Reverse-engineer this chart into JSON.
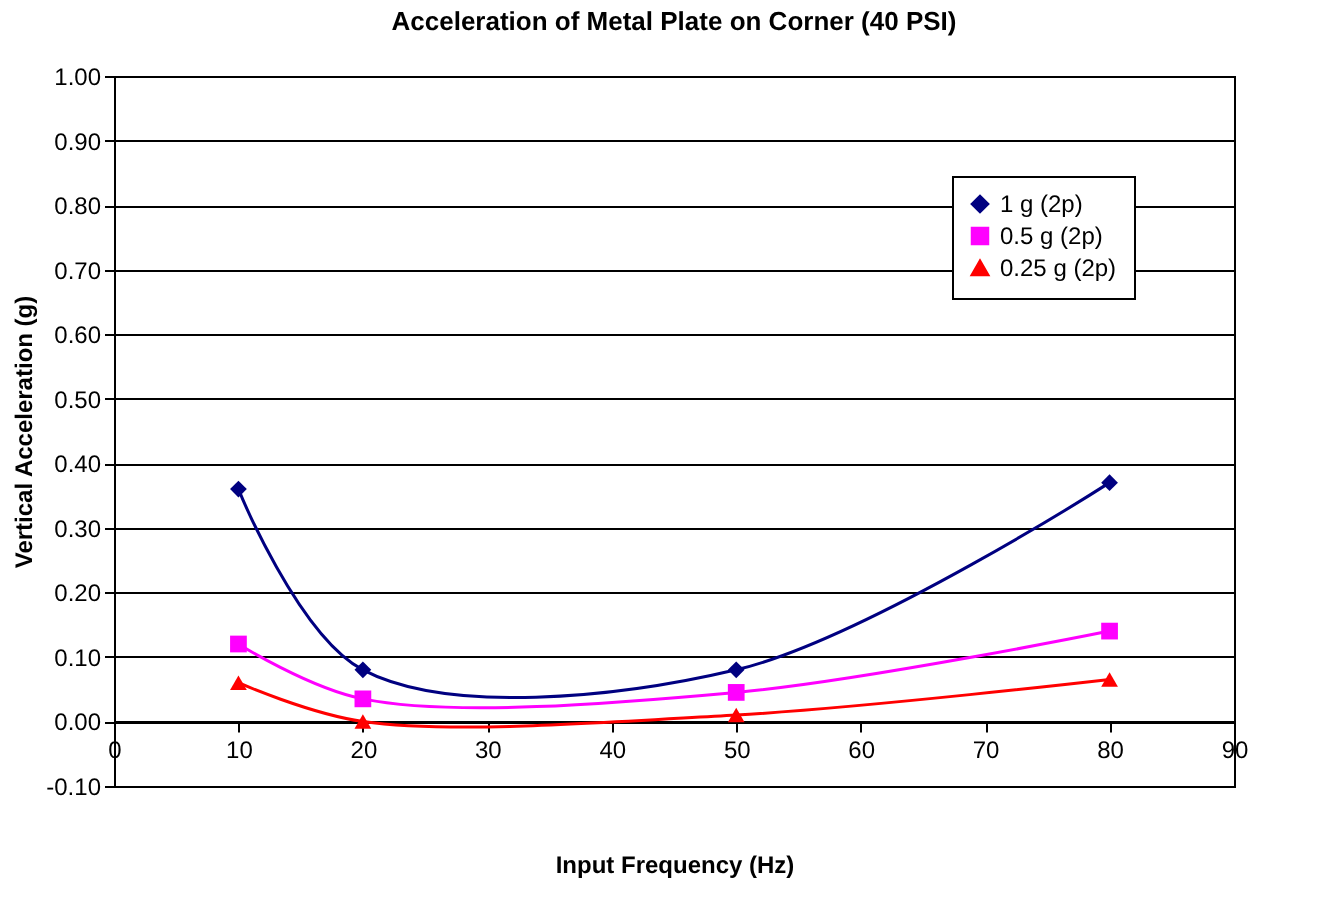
{
  "chart_data": {
    "type": "line",
    "title": "Acceleration of Metal Plate on Corner (40 PSI)",
    "xlabel": "Input Frequency (Hz)",
    "ylabel": "Vertical Acceleration (g)",
    "x": [
      10,
      20,
      50,
      80
    ],
    "series": [
      {
        "name": "1 g (2p)",
        "color": "#000080",
        "marker": "diamond",
        "values": [
          0.36,
          0.08,
          0.08,
          0.37
        ]
      },
      {
        "name": "0.5 g (2p)",
        "color": "#ff00ff",
        "marker": "square",
        "values": [
          0.12,
          0.035,
          0.045,
          0.14
        ]
      },
      {
        "name": "0.25 g (2p)",
        "color": "#ff0000",
        "marker": "triangle",
        "values": [
          0.06,
          0.0,
          0.01,
          0.065
        ]
      }
    ],
    "xlim": [
      0,
      90
    ],
    "xticks": [
      0,
      10,
      20,
      30,
      40,
      50,
      60,
      70,
      80,
      90
    ],
    "ylim": [
      -0.1,
      1.0
    ],
    "yticks": [
      {
        "value": -0.1,
        "label": "-0.10"
      },
      {
        "value": 0,
        "label": "0.00"
      },
      {
        "value": 0.1,
        "label": "0.10"
      },
      {
        "value": 0.2,
        "label": "0.20"
      },
      {
        "value": 0.3,
        "label": "0.30"
      },
      {
        "value": 0.4,
        "label": "0.40"
      },
      {
        "value": 0.5,
        "label": "0.50"
      },
      {
        "value": 0.6,
        "label": "0.60"
      },
      {
        "value": 0.7,
        "label": "0.70"
      },
      {
        "value": 0.8,
        "label": "0.80"
      },
      {
        "value": 0.9,
        "label": "0.90"
      },
      {
        "value": 1.0,
        "label": "1.00"
      }
    ],
    "grid": "y",
    "legend": "top right",
    "line_style": "solid"
  }
}
